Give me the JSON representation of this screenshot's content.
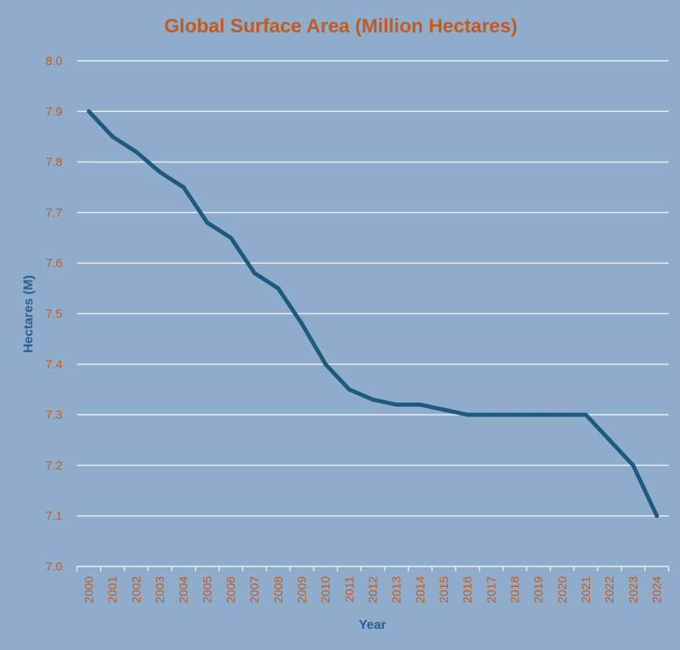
{
  "chart_data": {
    "type": "line",
    "title": "Global Surface Area (Million Hectares)",
    "xlabel": "Year",
    "ylabel": "Hectares (M)",
    "ylim": [
      7.0,
      8.0
    ],
    "yticks": [
      "7.0",
      "7.1",
      "7.2",
      "7.3",
      "7.4",
      "7.5",
      "7.6",
      "7.7",
      "7.8",
      "7.9",
      "8.0"
    ],
    "categories": [
      "2000",
      "2001",
      "2002",
      "2003",
      "2004",
      "2005",
      "2006",
      "2007",
      "2008",
      "2009",
      "2010",
      "2011",
      "2012",
      "2013",
      "2014",
      "2015",
      "2016",
      "2017",
      "2018",
      "2019",
      "2020",
      "2021",
      "2022",
      "2023",
      "2024"
    ],
    "series": [
      {
        "values": [
          7.9,
          7.85,
          7.82,
          7.78,
          7.75,
          7.68,
          7.65,
          7.58,
          7.55,
          7.48,
          7.4,
          7.35,
          7.33,
          7.32,
          7.32,
          7.31,
          7.3,
          7.3,
          7.3,
          7.3,
          7.3,
          7.3,
          7.25,
          7.2,
          7.1
        ]
      }
    ],
    "grid": true,
    "legend": "none",
    "colors": {
      "background": "#8fadcb",
      "line": "#1e5a7e",
      "gridline": "#e6eef6",
      "title": "#c65a1e",
      "tick_label": "#c65a1e",
      "axis_title": "#2a5f95"
    }
  }
}
